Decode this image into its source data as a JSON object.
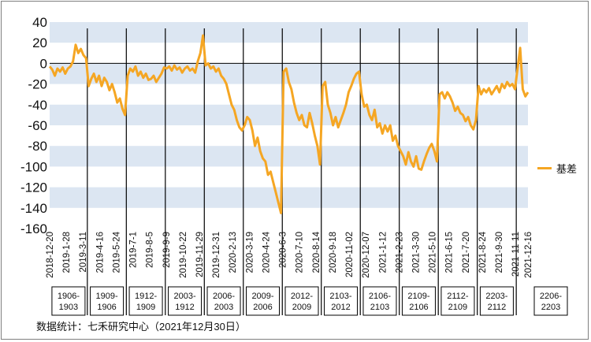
{
  "source_note": "数据统计：七禾研究中心（2021年12月30日）",
  "colors": {
    "series": "#f5a623",
    "band": "#dce6f2",
    "axis": "#000000",
    "divider": "#000000"
  },
  "chart_data": {
    "type": "line",
    "ylim": [
      -160,
      40
    ],
    "y_ticks": [
      40,
      20,
      0,
      -20,
      -40,
      -60,
      -80,
      -100,
      -120,
      -140,
      -160
    ],
    "grid": "horizontal alternating bands",
    "legend_position": "right",
    "x_tick_labels": [
      "2018-12-20",
      "2019-1-28",
      "2019-3-11",
      "2019-4-16",
      "2019-5-24",
      "2019-7-1",
      "2019-8-5",
      "2019-9-9",
      "2019-10-22",
      "2019-11-29",
      "2019-12-31",
      "2020-2-13",
      "2020-3-19",
      "2020-4-24",
      "2020-6-3",
      "2020-7-10",
      "2020-8-14",
      "2020-9-18",
      "2020-11-02",
      "2020-12-07",
      "2021-1-12",
      "2021-2-23",
      "2021-3-30",
      "2021-5-10",
      "2021-6-15",
      "2021-7-20",
      "2021-8-24",
      "2021-9-30",
      "2021-11-11",
      "2021-12-16"
    ],
    "contract_spreads": [
      "1906-1903",
      "1909-1906",
      "1912-1909",
      "2003-1912",
      "2006-2003",
      "2009-2006",
      "2012-2009",
      "2103-2012",
      "2106-2103",
      "2109-2106",
      "2112-2109",
      "2203-2112",
      "2206-2203"
    ],
    "series": [
      {
        "name": "基差",
        "values": [
          [
            0,
            -3
          ],
          [
            1,
            -6
          ],
          [
            2,
            -12
          ],
          [
            3,
            -5
          ],
          [
            4,
            -8
          ],
          [
            5,
            -4
          ],
          [
            6,
            -10
          ],
          [
            7,
            -5
          ],
          [
            8,
            -3
          ],
          [
            9,
            2
          ],
          [
            10,
            18
          ],
          [
            11,
            10
          ],
          [
            12,
            14
          ],
          [
            13,
            8
          ],
          [
            14,
            5
          ],
          [
            15,
            -22
          ],
          [
            16,
            -15
          ],
          [
            17,
            -10
          ],
          [
            18,
            -18
          ],
          [
            19,
            -12
          ],
          [
            20,
            -22
          ],
          [
            21,
            -14
          ],
          [
            22,
            -18
          ],
          [
            23,
            -26
          ],
          [
            24,
            -20
          ],
          [
            25,
            -28
          ],
          [
            26,
            -38
          ],
          [
            27,
            -34
          ],
          [
            28,
            -44
          ],
          [
            29,
            -50
          ],
          [
            30,
            -12
          ],
          [
            31,
            -5
          ],
          [
            32,
            -8
          ],
          [
            33,
            -3
          ],
          [
            34,
            -12
          ],
          [
            35,
            -8
          ],
          [
            36,
            -14
          ],
          [
            37,
            -10
          ],
          [
            38,
            -16
          ],
          [
            39,
            -15
          ],
          [
            40,
            -12
          ],
          [
            41,
            -18
          ],
          [
            42,
            -14
          ],
          [
            43,
            -10
          ],
          [
            44,
            -4
          ],
          [
            45,
            -5
          ],
          [
            46,
            -3
          ],
          [
            47,
            -7
          ],
          [
            48,
            -2
          ],
          [
            49,
            -6
          ],
          [
            50,
            -4
          ],
          [
            51,
            -9
          ],
          [
            52,
            -5
          ],
          [
            53,
            -3
          ],
          [
            54,
            -7
          ],
          [
            55,
            -5
          ],
          [
            56,
            -9
          ],
          [
            57,
            2
          ],
          [
            58,
            10
          ],
          [
            59,
            27
          ],
          [
            60,
            -2
          ],
          [
            61,
            0
          ],
          [
            62,
            -5
          ],
          [
            63,
            -3
          ],
          [
            64,
            -8
          ],
          [
            65,
            -5
          ],
          [
            66,
            -12
          ],
          [
            67,
            -15
          ],
          [
            68,
            -20
          ],
          [
            69,
            -30
          ],
          [
            70,
            -40
          ],
          [
            71,
            -45
          ],
          [
            72,
            -55
          ],
          [
            73,
            -62
          ],
          [
            74,
            -65
          ],
          [
            75,
            -60
          ],
          [
            76,
            -52
          ],
          [
            77,
            -55
          ],
          [
            78,
            -65
          ],
          [
            79,
            -80
          ],
          [
            80,
            -72
          ],
          [
            81,
            -85
          ],
          [
            82,
            -92
          ],
          [
            83,
            -95
          ],
          [
            84,
            -108
          ],
          [
            85,
            -105
          ],
          [
            86,
            -115
          ],
          [
            87,
            -125
          ],
          [
            88,
            -135
          ],
          [
            89,
            -145
          ],
          [
            90,
            -8
          ],
          [
            91,
            -5
          ],
          [
            92,
            -18
          ],
          [
            93,
            -25
          ],
          [
            94,
            -38
          ],
          [
            95,
            -48
          ],
          [
            96,
            -55
          ],
          [
            97,
            -50
          ],
          [
            98,
            -60
          ],
          [
            99,
            -62
          ],
          [
            100,
            -48
          ],
          [
            101,
            -58
          ],
          [
            102,
            -70
          ],
          [
            103,
            -80
          ],
          [
            104,
            -98
          ],
          [
            105,
            -22
          ],
          [
            106,
            -18
          ],
          [
            107,
            -40
          ],
          [
            108,
            -48
          ],
          [
            109,
            -60
          ],
          [
            110,
            -52
          ],
          [
            111,
            -62
          ],
          [
            112,
            -55
          ],
          [
            113,
            -48
          ],
          [
            114,
            -40
          ],
          [
            115,
            -28
          ],
          [
            116,
            -22
          ],
          [
            117,
            -15
          ],
          [
            118,
            -10
          ],
          [
            119,
            -8
          ],
          [
            120,
            -30
          ],
          [
            121,
            -42
          ],
          [
            122,
            -40
          ],
          [
            123,
            -50
          ],
          [
            124,
            -55
          ],
          [
            125,
            -45
          ],
          [
            126,
            -62
          ],
          [
            127,
            -58
          ],
          [
            128,
            -68
          ],
          [
            129,
            -60
          ],
          [
            130,
            -66
          ],
          [
            131,
            -60
          ],
          [
            132,
            -75
          ],
          [
            133,
            -70
          ],
          [
            134,
            -80
          ],
          [
            135,
            -85
          ],
          [
            136,
            -90
          ],
          [
            137,
            -98
          ],
          [
            138,
            -86
          ],
          [
            139,
            -95
          ],
          [
            140,
            -100
          ],
          [
            141,
            -90
          ],
          [
            142,
            -102
          ],
          [
            143,
            -103
          ],
          [
            144,
            -95
          ],
          [
            145,
            -88
          ],
          [
            146,
            -82
          ],
          [
            147,
            -78
          ],
          [
            148,
            -85
          ],
          [
            149,
            -95
          ],
          [
            150,
            -30
          ],
          [
            151,
            -28
          ],
          [
            152,
            -34
          ],
          [
            153,
            -28
          ],
          [
            154,
            -32
          ],
          [
            155,
            -38
          ],
          [
            156,
            -46
          ],
          [
            157,
            -42
          ],
          [
            158,
            -48
          ],
          [
            159,
            -50
          ],
          [
            160,
            -56
          ],
          [
            161,
            -52
          ],
          [
            162,
            -60
          ],
          [
            163,
            -64
          ],
          [
            164,
            -55
          ],
          [
            165,
            -22
          ],
          [
            166,
            -30
          ],
          [
            167,
            -25
          ],
          [
            168,
            -28
          ],
          [
            169,
            -24
          ],
          [
            170,
            -30
          ],
          [
            171,
            -26
          ],
          [
            172,
            -22
          ],
          [
            173,
            -28
          ],
          [
            174,
            -20
          ],
          [
            175,
            -24
          ],
          [
            176,
            -18
          ],
          [
            177,
            -22
          ],
          [
            178,
            -20
          ],
          [
            179,
            -25
          ],
          [
            180,
            -5
          ],
          [
            181,
            15
          ],
          [
            182,
            -25
          ],
          [
            183,
            -32
          ],
          [
            184,
            -28
          ]
        ]
      }
    ],
    "dividers_at_point": [
      14.5,
      29.5,
      44.5,
      59.5,
      74.5,
      89.5,
      104.5,
      119.5,
      134.5,
      149.5,
      164.5,
      179.5
    ],
    "x_tick_at_point": [
      0,
      6.4,
      12.8,
      19.2,
      25.6,
      32,
      38.4,
      44.8,
      51.2,
      57.6,
      64,
      70.4,
      76.8,
      83.2,
      89.6,
      96,
      102.4,
      108.8,
      115.2,
      121.6,
      128,
      134.4,
      140.8,
      147.2,
      153.6,
      160,
      166.4,
      172.8,
      179.2,
      184
    ]
  }
}
